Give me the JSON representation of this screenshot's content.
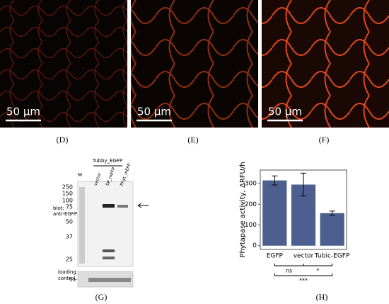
{
  "images": [
    {
      "label": "(D)",
      "scale_bar": "50 μm"
    },
    {
      "label": "(E)",
      "scale_bar": "50 μm"
    },
    {
      "label": "(F)",
      "scale_bar": "50 μm"
    }
  ],
  "blot": {
    "label": "(G)",
    "group": "Tubby_EGFP",
    "lanes": [
      "M",
      "vector",
      "SP_mEFP",
      "Phyt_mEFP"
    ],
    "markers": [
      "250",
      "150",
      "100",
      "75",
      "50",
      "37",
      "25"
    ],
    "blot_label": [
      "blot:",
      "anti-EGFP"
    ],
    "loading_label": [
      "loading",
      "control"
    ],
    "loading_marker": "50-"
  },
  "chart_label": "(H)",
  "chart_data": {
    "type": "bar",
    "ylabel": "Phytapase activity, ΔRFU/h",
    "categories": [
      "EGFP",
      "vector",
      "Tubic-EGFP"
    ],
    "values": [
      315,
      295,
      157
    ],
    "errors": [
      22,
      55,
      10
    ],
    "color": "#4c5f8e",
    "ylim": [
      -18,
      365
    ],
    "yticks": [
      0,
      100,
      200,
      300
    ],
    "annotations": [
      "ns",
      "*",
      "***"
    ]
  }
}
